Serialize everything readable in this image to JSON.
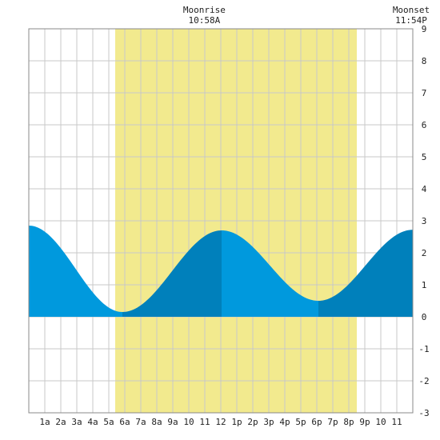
{
  "chart_data": {
    "type": "area",
    "title": "",
    "xlabel": "",
    "ylabel": "",
    "x_unit": "hour of day",
    "xlim": [
      0,
      24
    ],
    "ylim": [
      -3,
      9
    ],
    "y_ticks": [
      -3,
      -2,
      -1,
      0,
      1,
      2,
      3,
      4,
      5,
      6,
      7,
      8,
      9
    ],
    "x_ticks": [
      {
        "x": 1,
        "label": "1a"
      },
      {
        "x": 2,
        "label": "2a"
      },
      {
        "x": 3,
        "label": "3a"
      },
      {
        "x": 4,
        "label": "4a"
      },
      {
        "x": 5,
        "label": "5a"
      },
      {
        "x": 6,
        "label": "6a"
      },
      {
        "x": 7,
        "label": "7a"
      },
      {
        "x": 8,
        "label": "8a"
      },
      {
        "x": 9,
        "label": "9a"
      },
      {
        "x": 10,
        "label": "10"
      },
      {
        "x": 11,
        "label": "11"
      },
      {
        "x": 12,
        "label": "12"
      },
      {
        "x": 13,
        "label": "1p"
      },
      {
        "x": 14,
        "label": "2p"
      },
      {
        "x": 15,
        "label": "3p"
      },
      {
        "x": 16,
        "label": "4p"
      },
      {
        "x": 17,
        "label": "5p"
      },
      {
        "x": 18,
        "label": "6p"
      },
      {
        "x": 19,
        "label": "7p"
      },
      {
        "x": 20,
        "label": "8p"
      },
      {
        "x": 21,
        "label": "9p"
      },
      {
        "x": 22,
        "label": "10"
      },
      {
        "x": 23,
        "label": "11"
      }
    ],
    "daylight": [
      5.4,
      20.5
    ],
    "tide_extremes": [
      {
        "x": 0.0,
        "y": 2.85
      },
      {
        "x": 5.85,
        "y": 0.15
      },
      {
        "x": 12.05,
        "y": 2.7
      },
      {
        "x": 18.1,
        "y": 0.5
      },
      {
        "x": 24.0,
        "y": 2.72
      }
    ],
    "moon_events": [
      {
        "label": "Moonrise",
        "time": "10:58A",
        "x": 10.97
      },
      {
        "label": "Moonset",
        "time": "11:54P",
        "x": 23.9
      }
    ],
    "grid": true,
    "colors": {
      "daylight": "#f2ea8e",
      "tide_light": "#0099dd",
      "tide_dark": "#0080bb",
      "grid": "#c8c8c8",
      "border": "#888888"
    }
  }
}
